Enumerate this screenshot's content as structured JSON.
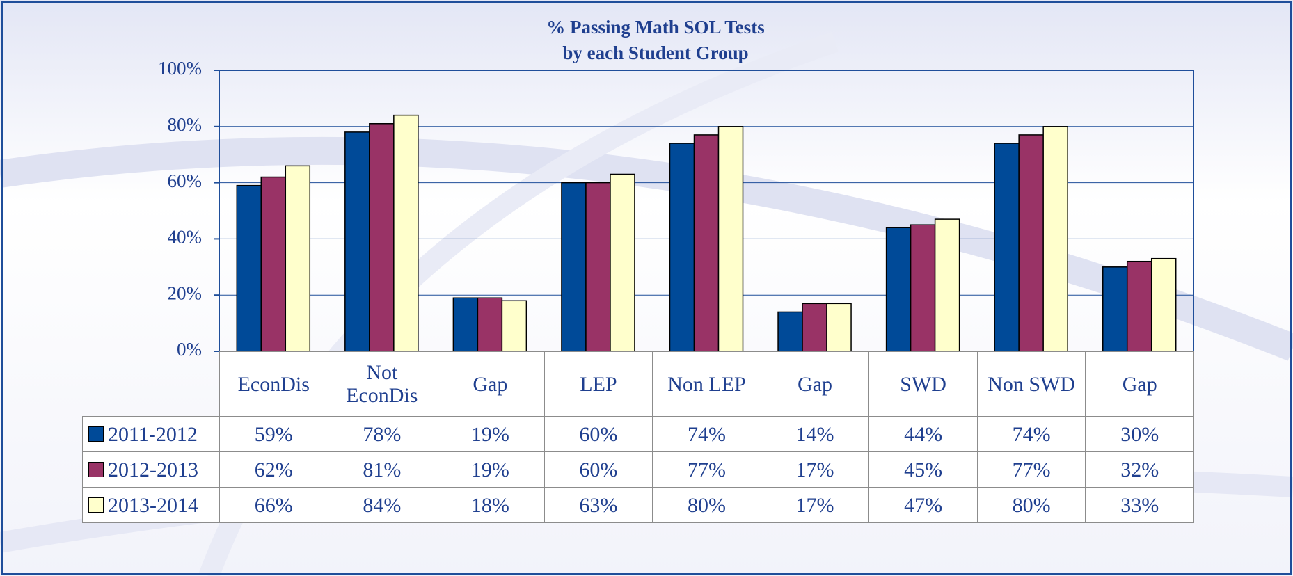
{
  "chart_data": {
    "type": "bar",
    "title": "% Passing Math SOL Tests",
    "subtitle": "by each Student Group",
    "categories": [
      "EconDis",
      "Not EconDis",
      "Gap",
      "LEP",
      "Non LEP",
      "Gap",
      "SWD",
      "Non SWD",
      "Gap"
    ],
    "series": [
      {
        "name": "2011-2012",
        "color": "#004a98",
        "values": [
          59,
          78,
          19,
          60,
          74,
          14,
          44,
          74,
          30
        ],
        "value_labels": [
          "59%",
          "78%",
          "19%",
          "60%",
          "74%",
          "14%",
          "44%",
          "74%",
          "30%"
        ]
      },
      {
        "name": "2012-2013",
        "color": "#993366",
        "values": [
          62,
          81,
          19,
          60,
          77,
          17,
          45,
          77,
          32
        ],
        "value_labels": [
          "62%",
          "81%",
          "19%",
          "60%",
          "77%",
          "17%",
          "45%",
          "77%",
          "32%"
        ]
      },
      {
        "name": "2013-2014",
        "color": "#ffffcc",
        "values": [
          66,
          84,
          18,
          63,
          80,
          17,
          47,
          80,
          33
        ],
        "value_labels": [
          "66%",
          "84%",
          "18%",
          "63%",
          "80%",
          "17%",
          "47%",
          "80%",
          "33%"
        ]
      }
    ],
    "ylim": [
      0,
      100
    ],
    "yticks": [
      {
        "value": 0,
        "label": "0%"
      },
      {
        "value": 20,
        "label": "20%"
      },
      {
        "value": 40,
        "label": "40%"
      },
      {
        "value": 60,
        "label": "60%"
      },
      {
        "value": 80,
        "label": "80%"
      },
      {
        "value": 100,
        "label": "100%"
      }
    ],
    "grid": true,
    "data_table": true
  }
}
